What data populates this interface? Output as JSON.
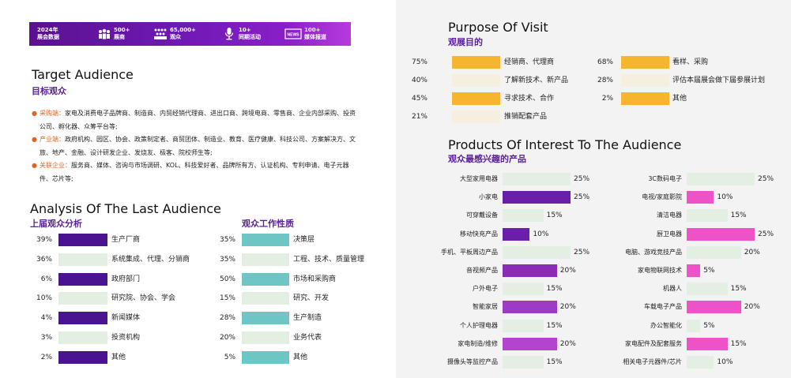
{
  "banner": {
    "items": [
      {
        "line1": "2024年",
        "line2": "展会数据",
        "icon": "none"
      },
      {
        "line1": "500+",
        "line2": "展商",
        "icon": "people-group-icon"
      },
      {
        "line1": "65,000+",
        "line2": "观众",
        "icon": "crowd-icon"
      },
      {
        "line1": "10+",
        "line2": "同期活动",
        "icon": "microphone-icon"
      },
      {
        "line1": "100+",
        "line2": "媒体报道",
        "icon": "news-icon"
      }
    ]
  },
  "target": {
    "title_en": "Target Audience",
    "title_cn": "目标观众",
    "bullets": [
      {
        "key": "采购端：",
        "text": "家电及消费电子品牌商、制造商、内贸经销代理商、进出口商、跨境电商、零售商、企业内部采购、投资公司、孵化器、众筹平台等;"
      },
      {
        "key": "产业端：",
        "text": "政府机构、园区、协会、政策制定者、商贸团体、制造业、教育、医疗健康、科技公司、方案解决方、文旅、地产、金融、设计研发企业、发烧友、极客、院校师生等;"
      },
      {
        "key": "关联企业：",
        "text": "服务商、媒体、咨询与市场调研、KOL、科技爱好者、品牌所有方、认证机构、专利申请、电子元器件、芯片等;"
      }
    ]
  },
  "analysis": {
    "title_en": "Analysis Of The Last Audience",
    "title_cn": "上届观众分析",
    "nature_title": "观众工作性质",
    "colors": {
      "purple": "#4a138f",
      "pale": "#e3efe2",
      "teal": "#6ec6c4"
    }
  },
  "chart_data": [
    {
      "type": "bar",
      "title": "上届观众分析",
      "categories": [
        "生产厂商",
        "系统集成、代理、分销商",
        "政府部门",
        "研究院、协会、学会",
        "新闻媒体",
        "投资机构",
        "其他"
      ],
      "values": [
        39,
        36,
        6,
        10,
        4,
        3,
        2
      ],
      "value_labels": [
        "39%",
        "36%",
        "6%",
        "10%",
        "4%",
        "3%",
        "2%"
      ],
      "bar_colors": [
        "#4a138f",
        "#e3efe2",
        "#4a138f",
        "#e3efe2",
        "#4a138f",
        "#e3efe2",
        "#4a138f"
      ]
    },
    {
      "type": "bar",
      "title": "观众工作性质",
      "categories": [
        "决策层",
        "工程、技术、质量管理",
        "市场和采购商",
        "研究、开发",
        "生产制造",
        "业务代表",
        "其他"
      ],
      "values": [
        35,
        35,
        50,
        15,
        28,
        20,
        5
      ],
      "value_labels": [
        "35%",
        "35%",
        "50%",
        "15%",
        "28%",
        "20%",
        "5%"
      ],
      "bar_colors": [
        "#6ec6c4",
        "#e3efe2",
        "#6ec6c4",
        "#e3efe2",
        "#6ec6c4",
        "#e3efe2",
        "#6ec6c4"
      ]
    },
    {
      "type": "bar",
      "title": "观展目的",
      "categories": [
        "经销商、代理商",
        "了解新技术、新产品",
        "寻求技术、合作",
        "推销配套产品",
        "看样、采购",
        "评估本届展会做下届参展计划",
        "其他"
      ],
      "values": [
        75,
        40,
        45,
        21,
        68,
        28,
        2
      ],
      "value_labels": [
        "75%",
        "40%",
        "45%",
        "21%",
        "68%",
        "28%",
        "2%"
      ],
      "bar_colors": [
        "#f5b52e",
        "#f6eedf",
        "#f5b52e",
        "#f6eedf",
        "#f5b52e",
        "#f6eedf",
        "#f5b52e"
      ]
    },
    {
      "type": "bar",
      "title": "观众最感兴趣的产品",
      "categories": [
        "大型家用电器",
        "小家电",
        "可穿戴设备",
        "移动快充产品",
        "手机、平板周边产品",
        "音视频产品",
        "户外电子",
        "智能家居",
        "个人护理电器",
        "家电制造/维修",
        "摄像头等监控产品"
      ],
      "values": [
        25,
        25,
        15,
        10,
        25,
        20,
        15,
        20,
        15,
        20,
        15
      ],
      "value_labels": [
        "25%",
        "25%",
        "15%",
        "10%",
        "25%",
        "20%",
        "15%",
        "20%",
        "15%",
        "20%",
        "15%"
      ],
      "bar_colors": [
        "#e3efe2",
        "#6a1fa8",
        "#e3efe2",
        "#6a1fa8",
        "#e3efe2",
        "#8a2cb7",
        "#e3efe2",
        "#9c3bc4",
        "#e3efe2",
        "#b344cc",
        "#e3efe2"
      ]
    },
    {
      "type": "bar",
      "title": "观众最感兴趣的产品",
      "categories": [
        "3C数码电子",
        "电视/家庭影院",
        "清洁电器",
        "厨卫电器",
        "电脑、游戏竞技产品",
        "家电物联网技术",
        "机器人",
        "车载电子产品",
        "办公智能化",
        "家电配件及配套服务",
        "相关电子元器件/芯片"
      ],
      "values": [
        25,
        10,
        15,
        25,
        20,
        5,
        15,
        20,
        5,
        15,
        10
      ],
      "value_labels": [
        "25%",
        "10%",
        "15%",
        "25%",
        "20%",
        "5%",
        "15%",
        "20%",
        "5%",
        "15%",
        "10%"
      ],
      "bar_colors": [
        "#e3efe2",
        "#ee52c8",
        "#e3efe2",
        "#ee52c8",
        "#e3efe2",
        "#ee52c8",
        "#e3efe2",
        "#ee52c8",
        "#e3efe2",
        "#ee52c8",
        "#e3efe2"
      ]
    }
  ],
  "visit": {
    "title_en": "Purpose Of Visit",
    "title_cn": "观展目的"
  },
  "products": {
    "title_en": "Products Of Interest To The Audience",
    "title_cn": "观众最感兴趣的产品"
  }
}
